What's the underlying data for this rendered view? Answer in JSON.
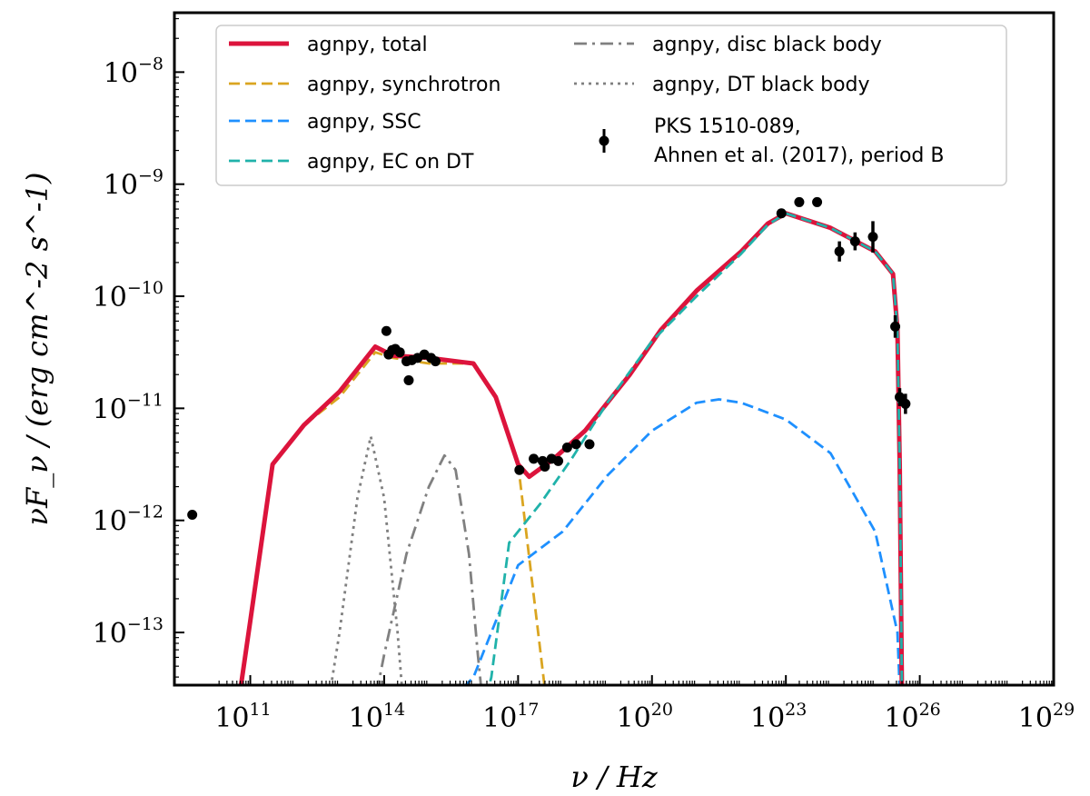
{
  "chart_data": {
    "type": "line",
    "title": "",
    "xlabel": "ν / Hz",
    "ylabel": "νF_ν / (erg cm^-2 s^-1)",
    "xscale": "log",
    "yscale": "log",
    "xlim_log10": [
      9.3,
      29
    ],
    "ylim_log10": [
      -13.47,
      -7.47
    ],
    "x_ticks": [
      {
        "base": "10",
        "exp": "11",
        "log": 11
      },
      {
        "base": "10",
        "exp": "14",
        "log": 14
      },
      {
        "base": "10",
        "exp": "17",
        "log": 17
      },
      {
        "base": "10",
        "exp": "20",
        "log": 20
      },
      {
        "base": "10",
        "exp": "23",
        "log": 23
      },
      {
        "base": "10",
        "exp": "26",
        "log": 26
      },
      {
        "base": "10",
        "exp": "29",
        "log": 29
      }
    ],
    "y_ticks": [
      {
        "base": "10",
        "exp": "−13",
        "log": -13
      },
      {
        "base": "10",
        "exp": "−12",
        "log": -12
      },
      {
        "base": "10",
        "exp": "−11",
        "log": -11
      },
      {
        "base": "10",
        "exp": "−10",
        "log": -10
      },
      {
        "base": "10",
        "exp": "−9",
        "log": -9
      },
      {
        "base": "10",
        "exp": "−8",
        "log": -8
      }
    ],
    "legend_position": "top",
    "series": [
      {
        "name": "agnpy, total",
        "color": "#dc143c",
        "style": "solid",
        "points_log10": [
          [
            9.0,
            -14.5
          ],
          [
            10.6,
            -14.0
          ],
          [
            11.0,
            -12.9
          ],
          [
            11.5,
            -11.5
          ],
          [
            12.2,
            -11.15
          ],
          [
            13.0,
            -10.85
          ],
          [
            13.8,
            -10.45
          ],
          [
            14.2,
            -10.53
          ],
          [
            15.0,
            -10.55
          ],
          [
            16.0,
            -10.6
          ],
          [
            16.5,
            -10.9
          ],
          [
            17.0,
            -11.5
          ],
          [
            17.25,
            -11.61
          ],
          [
            17.8,
            -11.45
          ],
          [
            18.5,
            -11.2
          ],
          [
            19.5,
            -10.7
          ],
          [
            20.2,
            -10.3
          ],
          [
            21.0,
            -9.95
          ],
          [
            22.0,
            -9.6
          ],
          [
            22.6,
            -9.35
          ],
          [
            23.0,
            -9.26
          ],
          [
            24.0,
            -9.39
          ],
          [
            25.0,
            -9.6
          ],
          [
            25.4,
            -9.8
          ],
          [
            25.5,
            -10.3
          ],
          [
            25.55,
            -11.5
          ],
          [
            25.6,
            -13.5
          ],
          [
            25.62,
            -14.5
          ]
        ]
      },
      {
        "name": "agnpy, synchrotron",
        "color": "#daa520",
        "style": "dashed",
        "points_log10": [
          [
            9.0,
            -14.5
          ],
          [
            10.6,
            -14.0
          ],
          [
            11.0,
            -12.9
          ],
          [
            11.5,
            -11.5
          ],
          [
            12.2,
            -11.15
          ],
          [
            13.0,
            -10.9
          ],
          [
            13.8,
            -10.5
          ],
          [
            14.2,
            -10.55
          ],
          [
            15.0,
            -10.6
          ],
          [
            16.0,
            -10.6
          ],
          [
            16.5,
            -10.9
          ],
          [
            17.0,
            -11.5
          ],
          [
            17.3,
            -12.5
          ],
          [
            17.6,
            -13.5
          ],
          [
            17.75,
            -14.5
          ]
        ]
      },
      {
        "name": "agnpy, SSC",
        "color": "#1e90ff",
        "style": "dashed",
        "points_log10": [
          [
            15.0,
            -13.8
          ],
          [
            16.0,
            -13.4
          ],
          [
            17.0,
            -12.4
          ],
          [
            18.0,
            -12.1
          ],
          [
            19.0,
            -11.6
          ],
          [
            20.0,
            -11.2
          ],
          [
            21.0,
            -10.95
          ],
          [
            21.5,
            -10.92
          ],
          [
            22.0,
            -10.95
          ],
          [
            23.0,
            -11.1
          ],
          [
            24.0,
            -11.4
          ],
          [
            25.0,
            -12.1
          ],
          [
            25.5,
            -13.0
          ],
          [
            25.6,
            -14.0
          ]
        ]
      },
      {
        "name": "agnpy, EC on DT",
        "color": "#20b2aa",
        "style": "dashed",
        "points_log10": [
          [
            16.0,
            -14.0
          ],
          [
            16.4,
            -13.4
          ],
          [
            16.8,
            -12.2
          ],
          [
            17.5,
            -11.85
          ],
          [
            18.2,
            -11.45
          ],
          [
            19.0,
            -10.95
          ],
          [
            20.0,
            -10.4
          ],
          [
            21.0,
            -10.0
          ],
          [
            22.0,
            -9.62
          ],
          [
            22.6,
            -9.36
          ],
          [
            23.0,
            -9.26
          ],
          [
            24.0,
            -9.39
          ],
          [
            25.0,
            -9.6
          ],
          [
            25.4,
            -9.8
          ],
          [
            25.5,
            -10.3
          ],
          [
            25.55,
            -11.5
          ],
          [
            25.6,
            -13.5
          ],
          [
            25.62,
            -14.5
          ]
        ]
      },
      {
        "name": "agnpy, disc black body",
        "color": "#808080",
        "style": "dashdot",
        "points_log10": [
          [
            13.6,
            -14.0
          ],
          [
            14.0,
            -13.2
          ],
          [
            14.5,
            -12.3
          ],
          [
            15.0,
            -11.7
          ],
          [
            15.35,
            -11.42
          ],
          [
            15.6,
            -11.55
          ],
          [
            15.9,
            -12.3
          ],
          [
            16.1,
            -13.2
          ],
          [
            16.3,
            -14.0
          ]
        ]
      },
      {
        "name": "agnpy, DT black body",
        "color": "#808080",
        "style": "dotted",
        "points_log10": [
          [
            12.6,
            -14.0
          ],
          [
            13.0,
            -13.0
          ],
          [
            13.4,
            -11.8
          ],
          [
            13.7,
            -11.25
          ],
          [
            14.0,
            -11.8
          ],
          [
            14.3,
            -13.0
          ],
          [
            14.5,
            -14.0
          ]
        ]
      }
    ],
    "data_points": {
      "name": "PKS 1510-089,",
      "name_line2": "Ahnen et al. (2017), period B",
      "color": "#000000",
      "points_log10": [
        [
          9.7,
          -11.95,
          0
        ],
        [
          14.05,
          -10.31,
          0
        ],
        [
          14.1,
          -10.52,
          0
        ],
        [
          14.18,
          -10.48,
          0
        ],
        [
          14.25,
          -10.47,
          0
        ],
        [
          14.35,
          -10.5,
          0
        ],
        [
          14.5,
          -10.58,
          0
        ],
        [
          14.55,
          -10.75,
          0
        ],
        [
          14.62,
          -10.57,
          0
        ],
        [
          14.75,
          -10.55,
          0
        ],
        [
          14.9,
          -10.52,
          0
        ],
        [
          15.05,
          -10.55,
          0
        ],
        [
          15.15,
          -10.58,
          0
        ],
        [
          17.03,
          -11.55,
          0
        ],
        [
          17.35,
          -11.45,
          0
        ],
        [
          17.55,
          -11.47,
          0
        ],
        [
          17.6,
          -11.52,
          0
        ],
        [
          17.75,
          -11.45,
          0
        ],
        [
          17.9,
          -11.47,
          0
        ],
        [
          18.1,
          -11.35,
          0
        ],
        [
          18.3,
          -11.32,
          0
        ],
        [
          18.6,
          -11.32,
          0
        ],
        [
          22.9,
          -9.26,
          0
        ],
        [
          23.3,
          -9.16,
          0
        ],
        [
          23.7,
          -9.16,
          0
        ],
        [
          24.2,
          -9.6,
          0.09
        ],
        [
          24.55,
          -9.51,
          0.08
        ],
        [
          24.95,
          -9.47,
          0.14
        ],
        [
          25.45,
          -10.27,
          0.1
        ],
        [
          25.55,
          -10.9,
          0.08
        ],
        [
          25.68,
          -10.96,
          0.09
        ]
      ]
    }
  }
}
